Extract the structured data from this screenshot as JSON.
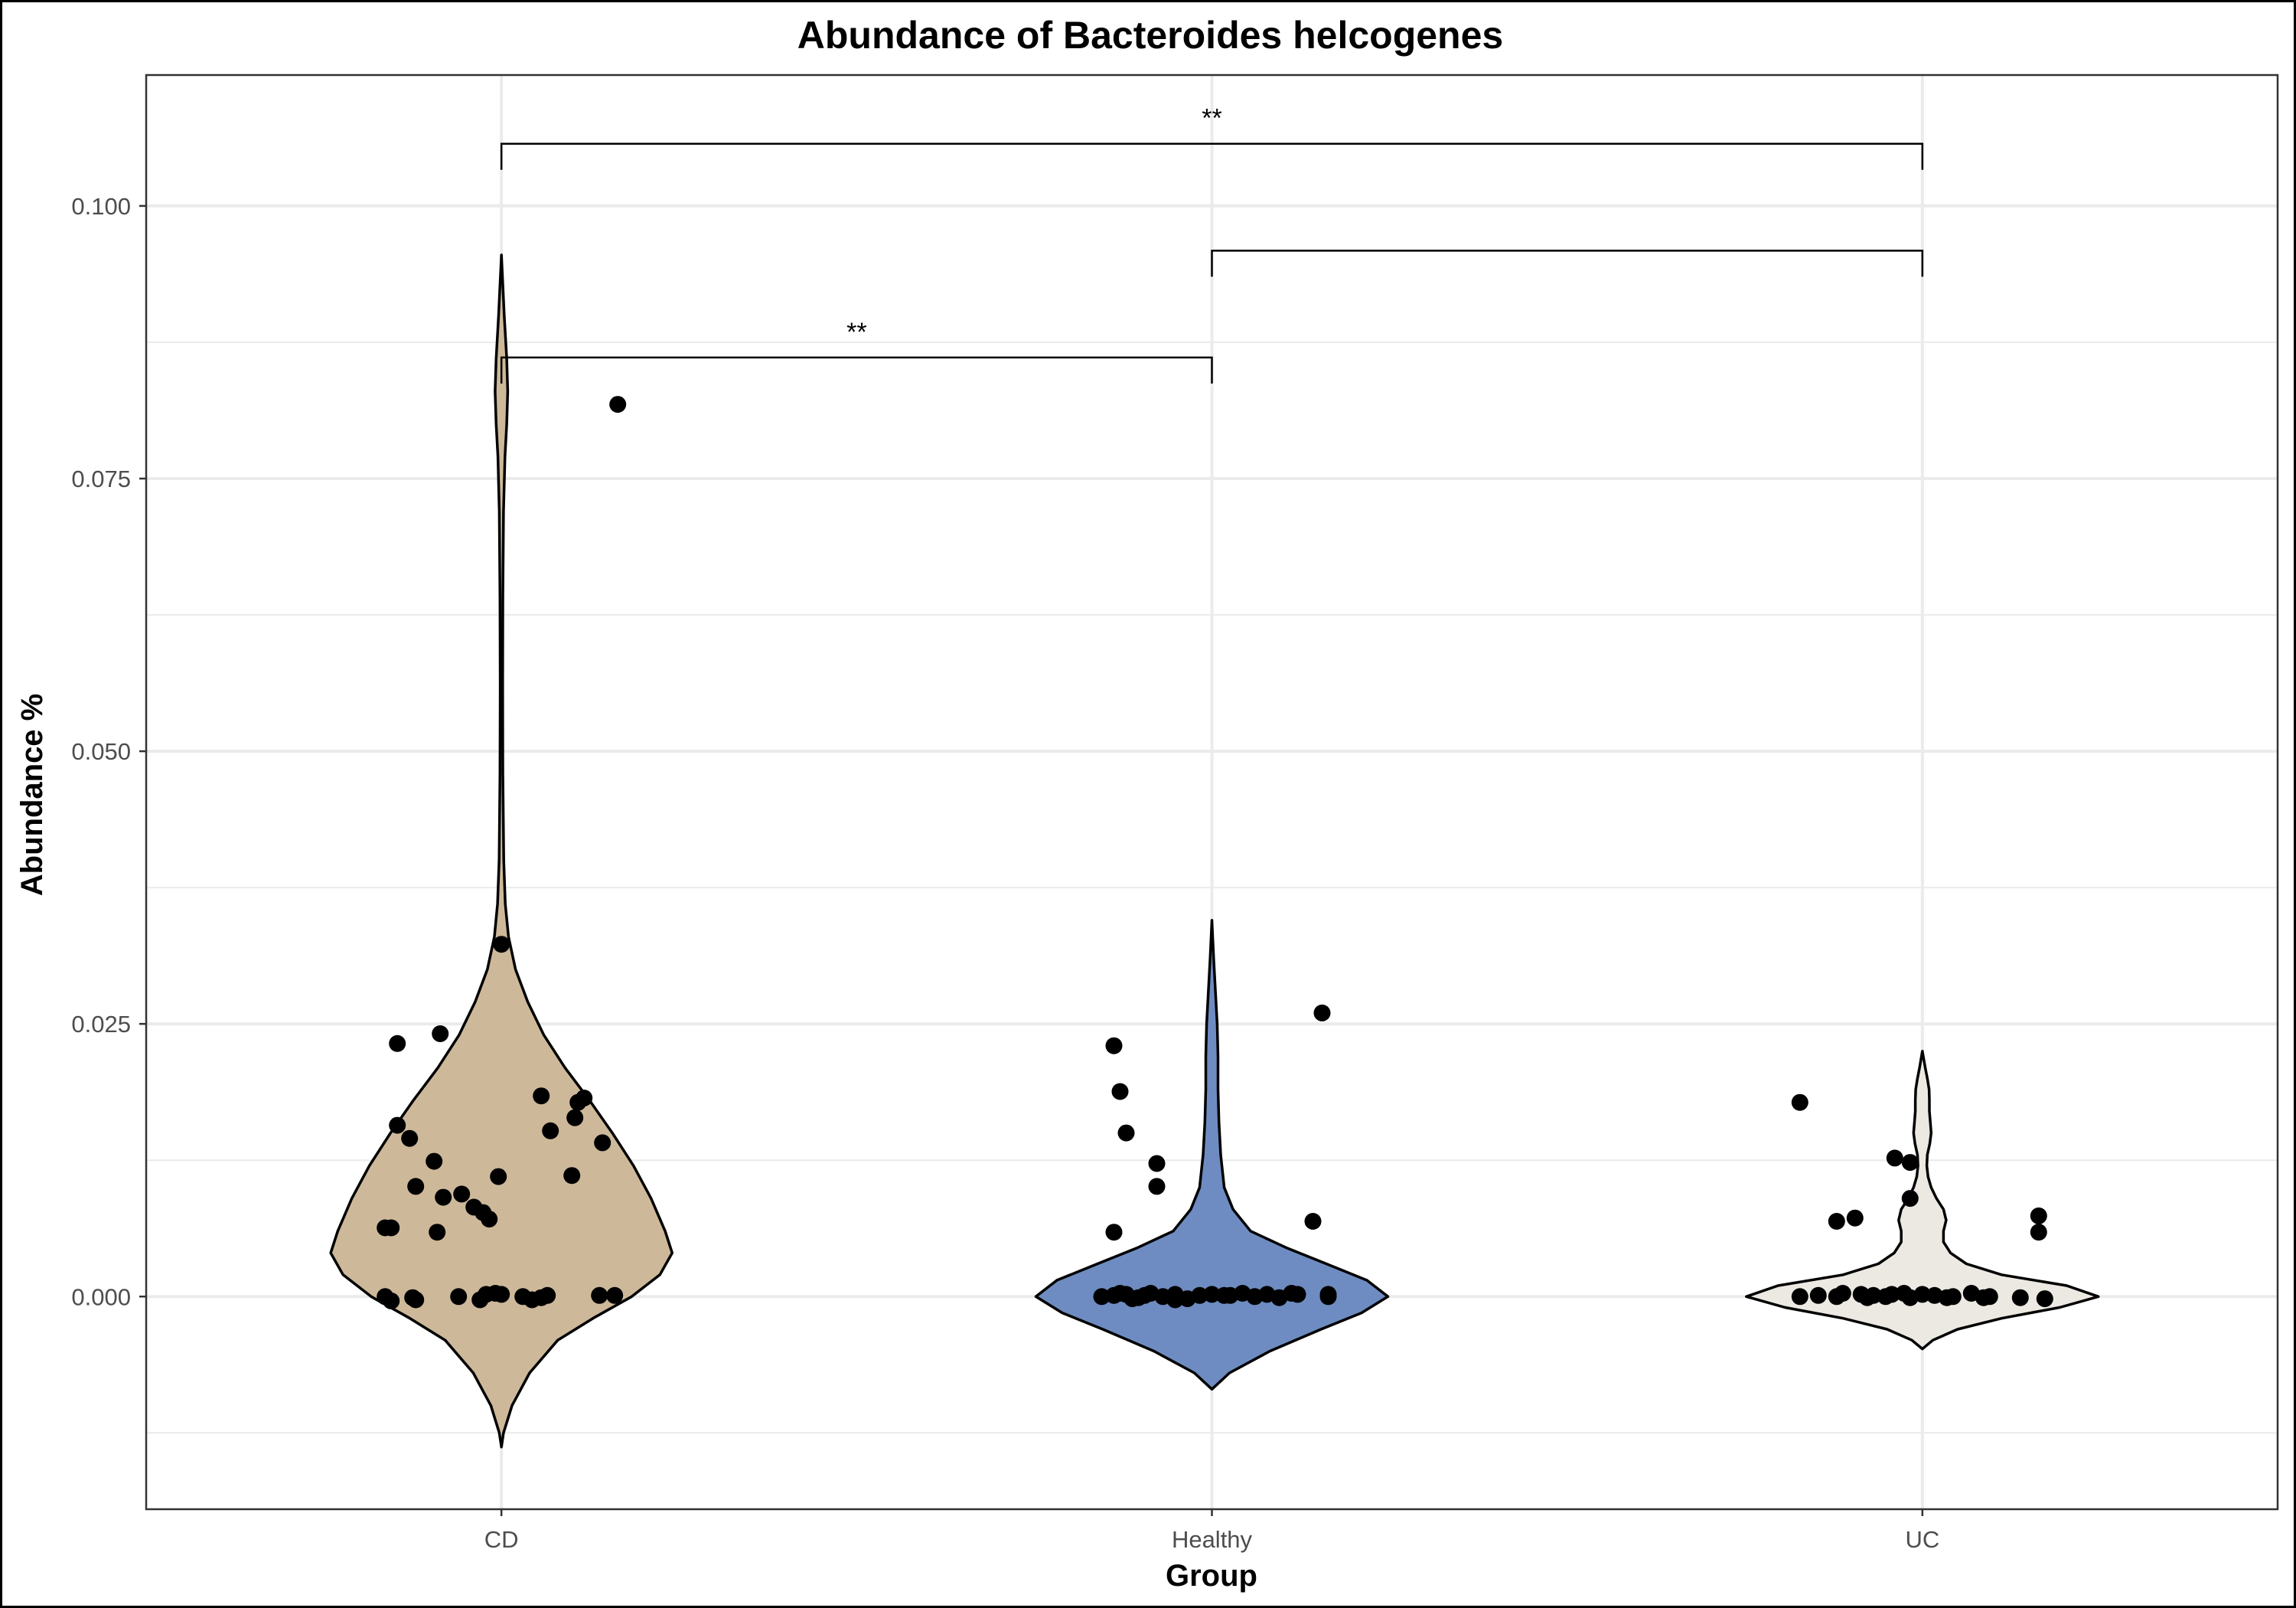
{
  "chart_data": {
    "type": "violin",
    "title": "Abundance of Bacteroides helcogenes",
    "xlabel": "Group",
    "ylabel": "Abundance %",
    "categories": [
      "CD",
      "Healthy",
      "UC"
    ],
    "ylim": [
      -0.0195,
      0.112
    ],
    "yticks": [
      0.0,
      0.025,
      0.05,
      0.075,
      0.1
    ],
    "ytick_labels": [
      "0.000",
      "0.025",
      "0.050",
      "0.075",
      "0.100"
    ],
    "grid": true,
    "legend": "none",
    "colors": {
      "CD": "#cdb99a",
      "Healthy": "#6e8cc1",
      "UC": "#ece9e2",
      "points": "#000000",
      "grid": "#ebebeb"
    },
    "violins": [
      {
        "group": "CD",
        "profile": [
          [
            -0.0138,
            0.0
          ],
          [
            -0.0125,
            0.012
          ],
          [
            -0.01,
            0.06
          ],
          [
            -0.007,
            0.16
          ],
          [
            -0.004,
            0.32
          ],
          [
            -0.002,
            0.52
          ],
          [
            0.0,
            0.74
          ],
          [
            0.002,
            0.9
          ],
          [
            0.004,
            0.97
          ],
          [
            0.006,
            0.93
          ],
          [
            0.009,
            0.85
          ],
          [
            0.012,
            0.75
          ],
          [
            0.015,
            0.63
          ],
          [
            0.018,
            0.5
          ],
          [
            0.021,
            0.36
          ],
          [
            0.024,
            0.24
          ],
          [
            0.027,
            0.15
          ],
          [
            0.03,
            0.08
          ],
          [
            0.033,
            0.04
          ],
          [
            0.036,
            0.022
          ],
          [
            0.04,
            0.013
          ],
          [
            0.048,
            0.008
          ],
          [
            0.056,
            0.007
          ],
          [
            0.064,
            0.008
          ],
          [
            0.072,
            0.012
          ],
          [
            0.077,
            0.02
          ],
          [
            0.08,
            0.03
          ],
          [
            0.083,
            0.036
          ],
          [
            0.086,
            0.03
          ],
          [
            0.09,
            0.016
          ],
          [
            0.0955,
            0.0
          ]
        ],
        "points": [
          [
            -0.19,
            0.0
          ],
          [
            -0.18,
            -0.0004
          ],
          [
            -0.14,
            -0.0003
          ],
          [
            -0.145,
            -0.0001
          ],
          [
            -0.07,
            0.0
          ],
          [
            -0.035,
            -0.0003
          ],
          [
            -0.025,
            0.0002
          ],
          [
            -0.01,
            0.0003
          ],
          [
            0.0,
            0.0002
          ],
          [
            0.035,
            0.0
          ],
          [
            0.05,
            -0.0003
          ],
          [
            0.065,
            -0.0001
          ],
          [
            0.075,
            0.0001
          ],
          [
            0.16,
            0.0001
          ],
          [
            0.185,
            0.0001
          ],
          [
            -0.19,
            0.0063
          ],
          [
            -0.18,
            0.0063
          ],
          [
            -0.105,
            0.0059
          ],
          [
            -0.095,
            0.0091
          ],
          [
            -0.065,
            0.0094
          ],
          [
            -0.045,
            0.0082
          ],
          [
            -0.03,
            0.0077
          ],
          [
            -0.02,
            0.0071
          ],
          [
            -0.005,
            0.011
          ],
          [
            -0.14,
            0.0101
          ],
          [
            -0.11,
            0.0124
          ],
          [
            -0.15,
            0.0145
          ],
          [
            -0.17,
            0.0157
          ],
          [
            -0.17,
            0.0232
          ],
          [
            -0.1,
            0.0241
          ],
          [
            0.065,
            0.0184
          ],
          [
            0.08,
            0.0152
          ],
          [
            0.12,
            0.0164
          ],
          [
            0.125,
            0.0178
          ],
          [
            0.135,
            0.0182
          ],
          [
            0.165,
            0.0141
          ],
          [
            0.115,
            0.0111
          ],
          [
            0.0,
            0.0323
          ],
          [
            0.19,
            0.0818
          ]
        ]
      },
      {
        "group": "Healthy",
        "profile": [
          [
            -0.0085,
            0.0
          ],
          [
            -0.007,
            0.1
          ],
          [
            -0.005,
            0.33
          ],
          [
            -0.003,
            0.62
          ],
          [
            -0.0015,
            0.85
          ],
          [
            0.0,
            1.0
          ],
          [
            0.0015,
            0.88
          ],
          [
            0.003,
            0.65
          ],
          [
            0.0045,
            0.42
          ],
          [
            0.006,
            0.22
          ],
          [
            0.008,
            0.12
          ],
          [
            0.01,
            0.07
          ],
          [
            0.013,
            0.05
          ],
          [
            0.016,
            0.04
          ],
          [
            0.019,
            0.035
          ],
          [
            0.022,
            0.035
          ],
          [
            0.025,
            0.03
          ],
          [
            0.028,
            0.02
          ],
          [
            0.031,
            0.01
          ],
          [
            0.0345,
            0.0
          ]
        ],
        "points": [
          [
            -0.18,
            0.0
          ],
          [
            -0.16,
            0.0001
          ],
          [
            -0.14,
            0.0002
          ],
          [
            -0.12,
            -0.0001
          ],
          [
            -0.1,
            0.0003
          ],
          [
            -0.08,
            0.0
          ],
          [
            -0.06,
            0.0002
          ],
          [
            -0.04,
            -0.0002
          ],
          [
            -0.02,
            0.0001
          ],
          [
            0.0,
            0.0002
          ],
          [
            0.03,
            0.0001
          ],
          [
            0.05,
            0.0003
          ],
          [
            0.07,
            0.0
          ],
          [
            0.09,
            0.0002
          ],
          [
            0.11,
            -0.0001
          ],
          [
            0.13,
            0.0003
          ],
          [
            0.14,
            0.0002
          ],
          [
            0.19,
            0.0
          ],
          [
            0.19,
            0.0002
          ],
          [
            -0.15,
            0.0003
          ],
          [
            -0.13,
            -0.0002
          ],
          [
            -0.11,
            0.0001
          ],
          [
            -0.06,
            -0.0003
          ],
          [
            0.02,
            0.0001
          ],
          [
            -0.16,
            0.023
          ],
          [
            -0.15,
            0.0188
          ],
          [
            -0.14,
            0.015
          ],
          [
            -0.09,
            0.0122
          ],
          [
            -0.09,
            0.0101
          ],
          [
            -0.16,
            0.0059
          ],
          [
            0.165,
            0.0069
          ],
          [
            0.18,
            0.026
          ]
        ]
      },
      {
        "group": "UC",
        "profile": [
          [
            -0.0048,
            0.0
          ],
          [
            -0.004,
            0.06
          ],
          [
            -0.003,
            0.2
          ],
          [
            -0.002,
            0.45
          ],
          [
            -0.001,
            0.78
          ],
          [
            0.0,
            1.0
          ],
          [
            0.001,
            0.82
          ],
          [
            0.002,
            0.45
          ],
          [
            0.003,
            0.25
          ],
          [
            0.004,
            0.16
          ],
          [
            0.005,
            0.12
          ],
          [
            0.006,
            0.12
          ],
          [
            0.007,
            0.135
          ],
          [
            0.008,
            0.12
          ],
          [
            0.009,
            0.08
          ],
          [
            0.01,
            0.05
          ],
          [
            0.011,
            0.032
          ],
          [
            0.012,
            0.025
          ],
          [
            0.013,
            0.028
          ],
          [
            0.014,
            0.042
          ],
          [
            0.015,
            0.05
          ],
          [
            0.016,
            0.045
          ],
          [
            0.017,
            0.04
          ],
          [
            0.018,
            0.04
          ],
          [
            0.019,
            0.038
          ],
          [
            0.02,
            0.028
          ],
          [
            0.021,
            0.016
          ],
          [
            0.0225,
            0.0
          ]
        ],
        "points": [
          [
            -0.2,
            0.0
          ],
          [
            -0.17,
            0.0001
          ],
          [
            -0.14,
            0.0
          ],
          [
            -0.13,
            0.0003
          ],
          [
            -0.1,
            0.0002
          ],
          [
            -0.08,
            0.0001
          ],
          [
            -0.06,
            0.0
          ],
          [
            -0.05,
            0.0002
          ],
          [
            -0.03,
            0.0003
          ],
          [
            -0.02,
            -0.0001
          ],
          [
            0.0,
            0.0002
          ],
          [
            0.02,
            0.0001
          ],
          [
            0.04,
            -0.0001
          ],
          [
            0.05,
            0.0
          ],
          [
            0.08,
            0.0003
          ],
          [
            0.1,
            -0.0001
          ],
          [
            0.11,
            0.0
          ],
          [
            0.16,
            -0.0001
          ],
          [
            0.2,
            -0.0002
          ],
          [
            -0.09,
            -0.0001
          ],
          [
            -0.2,
            0.0178
          ],
          [
            -0.14,
            0.0069
          ],
          [
            -0.11,
            0.0072
          ],
          [
            -0.045,
            0.0127
          ],
          [
            -0.02,
            0.0123
          ],
          [
            -0.02,
            0.009
          ],
          [
            0.19,
            0.0074
          ],
          [
            0.19,
            0.0059
          ]
        ]
      }
    ],
    "significance": [
      {
        "from": "CD",
        "to": "UC",
        "y": 0.1057,
        "label": "**"
      },
      {
        "from": "Healthy",
        "to": "UC",
        "y": 0.0959,
        "label": ""
      },
      {
        "from": "CD",
        "to": "Healthy",
        "y": 0.0861,
        "label": "**"
      }
    ]
  }
}
